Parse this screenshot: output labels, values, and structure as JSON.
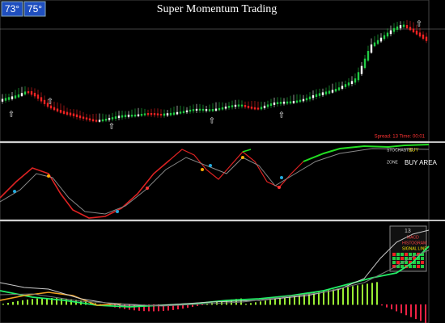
{
  "header": {
    "title": "Super Momentum Trading",
    "badges": [
      "73°",
      "75°"
    ]
  },
  "price_panel": {
    "status": "Spread: 13  Time: 00:01"
  },
  "stoch_panel": {
    "indicator": "STOCHASTIC",
    "signal": "BUY",
    "zone": "ZONE",
    "area": "BUY AREA"
  },
  "macd_panel": {
    "period": "13",
    "legend": [
      "MACD",
      "HISTOGRAM",
      "SIGNAL LINE"
    ]
  }
}
